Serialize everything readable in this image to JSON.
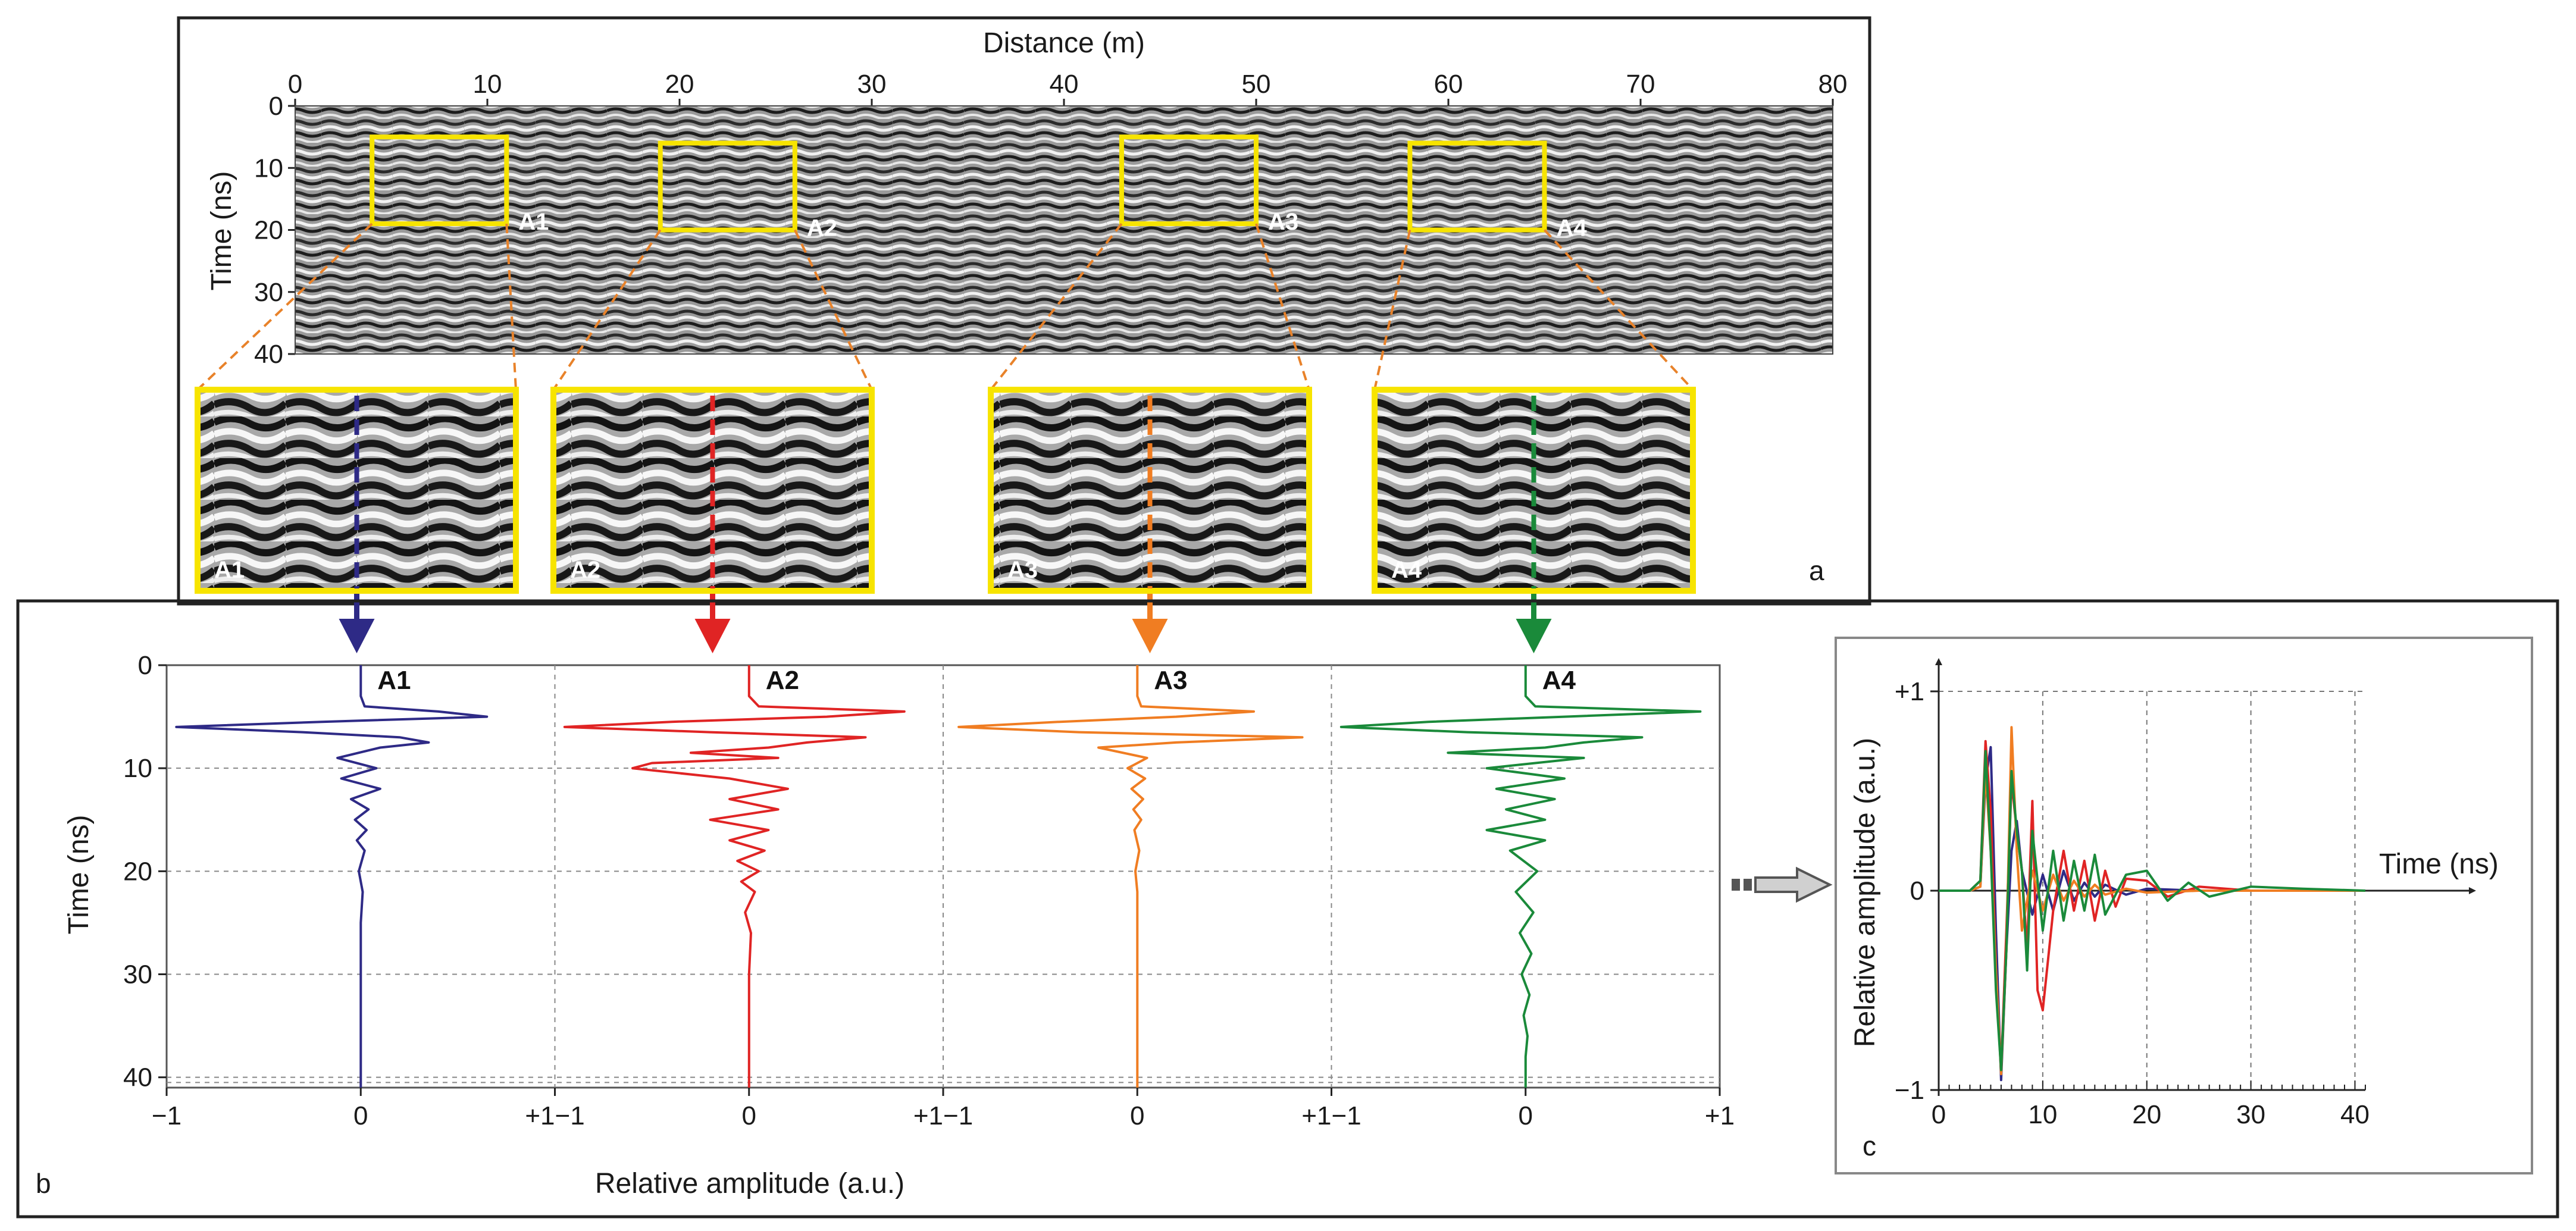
{
  "colors": {
    "a1": "#2e2a86",
    "a2": "#e02424",
    "a3": "#f07d22",
    "a4": "#1a8a3a",
    "highlight": "#f7e400",
    "leader": "#e8822a"
  },
  "chart_data": [
    {
      "panel": "a",
      "type": "heatmap",
      "xlabel": "Distance (m)",
      "ylabel": "Time (ns)",
      "xlim": [
        0,
        80
      ],
      "ylim": [
        40,
        0
      ],
      "xticks": [
        "0",
        "10",
        "20",
        "30",
        "40",
        "50",
        "60",
        "70",
        "80"
      ],
      "yticks": [
        "0",
        "10",
        "20",
        "30",
        "40"
      ],
      "areas": [
        {
          "label": "A1",
          "x_range": [
            4,
            11
          ],
          "t_range": [
            5,
            19
          ]
        },
        {
          "label": "A2",
          "x_range": [
            19,
            26
          ],
          "t_range": [
            6,
            20
          ]
        },
        {
          "label": "A3",
          "x_range": [
            43,
            50
          ],
          "t_range": [
            5,
            19
          ]
        },
        {
          "label": "A4",
          "x_range": [
            58,
            65
          ],
          "t_range": [
            6,
            20
          ]
        }
      ],
      "letter": "a"
    },
    {
      "panel": "b",
      "type": "line",
      "ylabel": "Time (ns)",
      "xlabel": "Relative amplitude (a.u.)",
      "ylim": [
        41,
        0
      ],
      "yticks": [
        "0",
        "10",
        "20",
        "30",
        "40"
      ],
      "xticks": [
        "−1",
        "0",
        "+1"
      ],
      "grid": true,
      "series": [
        {
          "name": "A1",
          "t": [
            0,
            3,
            4,
            4.5,
            5,
            5.5,
            6,
            6.5,
            7,
            7.5,
            8,
            9,
            10,
            11,
            12,
            13,
            14,
            15,
            16,
            17,
            18,
            20,
            22,
            25,
            30,
            35,
            41
          ],
          "values": [
            0,
            0,
            0.02,
            0.4,
            0.65,
            -0.2,
            -0.95,
            -0.3,
            0.2,
            0.35,
            0.1,
            -0.12,
            0.08,
            -0.1,
            0.1,
            -0.05,
            0.04,
            -0.03,
            0.03,
            -0.02,
            0.02,
            -0.01,
            0.01,
            0,
            0,
            0,
            0
          ]
        },
        {
          "name": "A2",
          "t": [
            0,
            3,
            4,
            4.5,
            5,
            5.5,
            6,
            6.5,
            7,
            7.5,
            8,
            8.5,
            9,
            9.5,
            10,
            11,
            12,
            13,
            14,
            15,
            16,
            17,
            18,
            19,
            20,
            21,
            22,
            24,
            26,
            30,
            35,
            41
          ],
          "values": [
            0,
            0,
            0.05,
            0.8,
            0.4,
            -0.4,
            -0.95,
            -0.2,
            0.6,
            0.3,
            0.1,
            -0.3,
            0.15,
            -0.5,
            -0.6,
            -0.1,
            0.2,
            -0.1,
            0.15,
            -0.2,
            0.1,
            -0.1,
            0.08,
            -0.06,
            0.05,
            -0.04,
            0.03,
            -0.02,
            0.01,
            0,
            0,
            0
          ]
        },
        {
          "name": "A3",
          "t": [
            0,
            3,
            4,
            4.5,
            5,
            5.5,
            6,
            6.5,
            7,
            7.5,
            8,
            9,
            10,
            11,
            12,
            13,
            14,
            15,
            16,
            18,
            20,
            22,
            25,
            30,
            35,
            41
          ],
          "values": [
            0,
            0,
            0.02,
            0.6,
            0.2,
            -0.4,
            -0.92,
            -0.3,
            0.85,
            0.2,
            -0.2,
            0.05,
            -0.05,
            0.04,
            -0.03,
            0.03,
            -0.02,
            0.02,
            -0.015,
            0.01,
            -0.01,
            0,
            0,
            0,
            0,
            0
          ]
        },
        {
          "name": "A4",
          "t": [
            0,
            3,
            4,
            4.5,
            5,
            5.5,
            6,
            6.5,
            7,
            7.5,
            8,
            8.5,
            9,
            10,
            11,
            12,
            13,
            14,
            15,
            16,
            17,
            18,
            20,
            22,
            24,
            26,
            28,
            30,
            32,
            34,
            36,
            38,
            41
          ],
          "values": [
            0,
            0,
            0.05,
            0.9,
            0.2,
            -0.5,
            -0.95,
            -0.3,
            0.6,
            0.3,
            0.1,
            -0.4,
            0.3,
            -0.2,
            0.2,
            -0.15,
            0.15,
            -0.1,
            0.1,
            -0.2,
            0.1,
            -0.08,
            0.06,
            -0.05,
            0.04,
            -0.03,
            0.03,
            -0.02,
            0.02,
            -0.01,
            0.01,
            0,
            0
          ]
        }
      ],
      "letter": "b"
    },
    {
      "panel": "c",
      "type": "line",
      "xlabel": "Time (ns)",
      "ylabel": "Relative amplitude (a.u.)",
      "xlim": [
        0,
        41
      ],
      "ylim": [
        -1,
        1
      ],
      "xticks": [
        "0",
        "10",
        "20",
        "30",
        "40"
      ],
      "yticks": [
        "+1",
        "0",
        "−1"
      ],
      "grid": true,
      "series": [
        {
          "name": "A1",
          "t": [
            0,
            3,
            4,
            4.5,
            5,
            5.5,
            6,
            6.5,
            7,
            7.5,
            8,
            9,
            10,
            11,
            12,
            13,
            14,
            15,
            16,
            18,
            20,
            25,
            30,
            41
          ],
          "values": [
            0,
            0,
            0.02,
            0.55,
            0.72,
            -0.2,
            -0.95,
            -0.3,
            0.2,
            0.35,
            0.1,
            -0.12,
            0.08,
            -0.1,
            0.1,
            -0.05,
            0.04,
            -0.03,
            0.03,
            -0.02,
            0.01,
            0,
            0,
            0
          ]
        },
        {
          "name": "A2",
          "t": [
            0,
            3,
            4,
            4.5,
            5,
            5.5,
            6,
            6.5,
            7,
            7.5,
            8,
            8.5,
            9,
            9.5,
            10,
            11,
            12,
            13,
            14,
            15,
            16,
            17,
            18,
            20,
            22,
            25,
            30,
            41
          ],
          "values": [
            0,
            0,
            0.05,
            0.75,
            0.4,
            -0.4,
            -0.9,
            -0.2,
            0.55,
            0.3,
            0.1,
            -0.3,
            0.45,
            -0.5,
            -0.6,
            -0.1,
            0.2,
            -0.1,
            0.15,
            -0.15,
            0.1,
            -0.08,
            0.06,
            0.05,
            -0.03,
            0.02,
            0,
            0
          ]
        },
        {
          "name": "A3",
          "t": [
            0,
            3,
            4,
            4.5,
            5,
            5.5,
            6,
            6.5,
            7,
            7.5,
            8,
            9,
            10,
            11,
            12,
            13,
            14,
            15,
            16,
            18,
            20,
            25,
            30,
            41
          ],
          "values": [
            0,
            0,
            0.02,
            0.6,
            0.2,
            -0.4,
            -0.92,
            -0.3,
            0.82,
            0.2,
            -0.2,
            0.1,
            -0.1,
            0.08,
            -0.05,
            0.05,
            -0.03,
            0.03,
            -0.02,
            0.01,
            -0.01,
            0,
            0,
            0
          ]
        },
        {
          "name": "A4",
          "t": [
            0,
            3,
            4,
            4.5,
            5,
            5.5,
            6,
            6.5,
            7,
            7.5,
            8,
            8.5,
            9,
            10,
            11,
            12,
            13,
            14,
            15,
            16,
            18,
            20,
            22,
            24,
            26,
            30,
            35,
            41
          ],
          "values": [
            0,
            0,
            0.05,
            0.7,
            0.2,
            -0.5,
            -0.9,
            -0.3,
            0.6,
            0.3,
            0.1,
            -0.4,
            0.3,
            -0.2,
            0.2,
            -0.15,
            0.15,
            -0.1,
            0.18,
            -0.12,
            0.08,
            0.1,
            -0.05,
            0.04,
            -0.03,
            0.02,
            0.01,
            0
          ]
        }
      ],
      "letter": "c"
    }
  ]
}
